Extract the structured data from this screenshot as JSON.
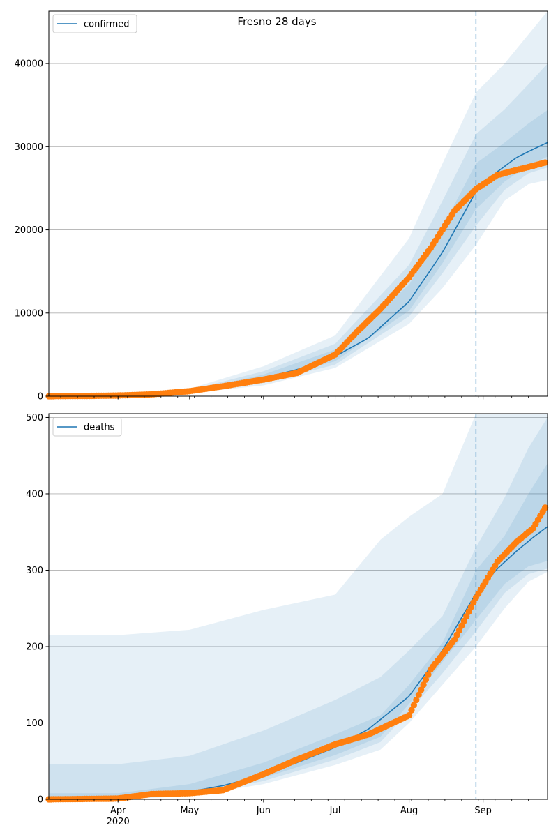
{
  "chart_data": [
    {
      "type": "line",
      "title": "Fresno 28 days",
      "xlabel": "",
      "ylabel": "",
      "x_ticks": [
        "Apr\n2020",
        "May",
        "Jun",
        "Jul",
        "Aug",
        "Sep"
      ],
      "ylim": [
        0,
        46300
      ],
      "yticks": [
        0,
        10000,
        20000,
        30000,
        40000
      ],
      "grid": "horizontal",
      "legend_placement": "top-left",
      "x_range": [
        "2020-03-03",
        "2020-09-28"
      ],
      "cutoff_date": "2020-08-29",
      "series": [
        {
          "name": "confirmed",
          "color": "#1f77b4",
          "kind": "line",
          "x": [
            "2020-03-03",
            "2020-03-15",
            "2020-04-01",
            "2020-04-15",
            "2020-05-01",
            "2020-05-15",
            "2020-06-01",
            "2020-06-15",
            "2020-07-01",
            "2020-07-15",
            "2020-08-01",
            "2020-08-15",
            "2020-08-29",
            "2020-09-07",
            "2020-09-15",
            "2020-09-22",
            "2020-09-28"
          ],
          "y": [
            0,
            20,
            60,
            150,
            500,
            1100,
            2200,
            3200,
            4800,
            7000,
            11400,
            17300,
            24600,
            27000,
            28700,
            29700,
            30500
          ]
        },
        {
          "kind": "points",
          "color": "#ff7f0e",
          "x": [
            "2020-03-03",
            "2020-03-15",
            "2020-04-01",
            "2020-04-15",
            "2020-05-01",
            "2020-05-15",
            "2020-06-01",
            "2020-06-15",
            "2020-07-01",
            "2020-07-10",
            "2020-07-20",
            "2020-08-01",
            "2020-08-10",
            "2020-08-20",
            "2020-08-29",
            "2020-09-07",
            "2020-09-15",
            "2020-09-22",
            "2020-09-27"
          ],
          "y": [
            0,
            20,
            80,
            220,
            600,
            1200,
            2000,
            2800,
            5000,
            7700,
            10500,
            14300,
            17800,
            22300,
            24900,
            26600,
            27200,
            27700,
            28100
          ]
        }
      ],
      "bands": {
        "color": "#1f77b4",
        "x": [
          "2020-03-03",
          "2020-04-01",
          "2020-05-01",
          "2020-06-01",
          "2020-07-01",
          "2020-08-01",
          "2020-08-15",
          "2020-08-29",
          "2020-09-10",
          "2020-09-20",
          "2020-09-28"
        ],
        "outer_lower": [
          0,
          30,
          350,
          1300,
          3400,
          8700,
          13000,
          18200,
          23500,
          25500,
          26000
        ],
        "outer_upper": [
          0,
          150,
          900,
          3600,
          7300,
          19000,
          28000,
          36500,
          40000,
          43500,
          46300
        ],
        "mid_lower": [
          0,
          40,
          400,
          1600,
          3800,
          9600,
          14800,
          20500,
          24800,
          26800,
          27500
        ],
        "mid_upper": [
          0,
          110,
          750,
          3000,
          6300,
          15800,
          23500,
          31500,
          34500,
          37500,
          40000
        ],
        "inner_lower": [
          0,
          50,
          450,
          1800,
          4200,
          10300,
          16000,
          22500,
          25800,
          27800,
          28800
        ],
        "inner_upper": [
          0,
          80,
          620,
          2600,
          5600,
          13400,
          20300,
          28000,
          30500,
          32800,
          34400
        ]
      }
    },
    {
      "type": "line",
      "title": "",
      "xlabel": "",
      "ylabel": "",
      "x_ticks": [
        "Apr\n2020",
        "May",
        "Jun",
        "Jul",
        "Aug",
        "Sep"
      ],
      "ylim": [
        0,
        505
      ],
      "yticks": [
        0,
        100,
        200,
        300,
        400,
        500
      ],
      "grid": "horizontal",
      "legend_placement": "top-left",
      "x_range": [
        "2020-03-03",
        "2020-09-28"
      ],
      "cutoff_date": "2020-08-29",
      "series": [
        {
          "name": "deaths",
          "color": "#1f77b4",
          "kind": "line",
          "x": [
            "2020-03-03",
            "2020-04-01",
            "2020-04-15",
            "2020-05-01",
            "2020-05-15",
            "2020-06-01",
            "2020-06-15",
            "2020-07-01",
            "2020-07-15",
            "2020-08-01",
            "2020-08-15",
            "2020-08-29",
            "2020-09-07",
            "2020-09-15",
            "2020-09-22",
            "2020-09-28"
          ],
          "y": [
            0,
            1,
            5,
            10,
            18,
            32,
            48,
            68,
            92,
            135,
            195,
            270,
            302,
            325,
            343,
            357
          ]
        },
        {
          "kind": "points",
          "color": "#ff7f0e",
          "x": [
            "2020-03-03",
            "2020-04-01",
            "2020-04-15",
            "2020-05-01",
            "2020-05-15",
            "2020-06-01",
            "2020-06-15",
            "2020-07-01",
            "2020-07-15",
            "2020-08-01",
            "2020-08-10",
            "2020-08-20",
            "2020-08-29",
            "2020-09-07",
            "2020-09-15",
            "2020-09-22",
            "2020-09-27"
          ],
          "y": [
            0,
            1,
            7,
            8,
            12,
            33,
            52,
            72,
            85,
            110,
            170,
            209,
            264,
            311,
            337,
            355,
            382
          ]
        }
      ],
      "bands": {
        "color": "#1f77b4",
        "x": [
          "2020-03-03",
          "2020-04-01",
          "2020-05-01",
          "2020-06-01",
          "2020-07-01",
          "2020-07-20",
          "2020-08-01",
          "2020-08-15",
          "2020-08-29",
          "2020-09-10",
          "2020-09-20",
          "2020-09-28"
        ],
        "outer_lower": [
          0,
          0,
          4,
          20,
          45,
          65,
          100,
          150,
          200,
          250,
          285,
          298
        ],
        "outer_upper": [
          215,
          215,
          222,
          248,
          268,
          340,
          370,
          400,
          505,
          505,
          505,
          505
        ],
        "mid_lower": [
          0,
          0,
          6,
          24,
          52,
          75,
          115,
          165,
          220,
          270,
          295,
          302
        ],
        "mid_upper": [
          46,
          46,
          57,
          90,
          130,
          160,
          195,
          240,
          330,
          395,
          460,
          500
        ],
        "inner_lower": [
          0,
          1,
          8,
          28,
          58,
          82,
          125,
          180,
          235,
          282,
          305,
          312
        ],
        "inner_upper": [
          8,
          8,
          20,
          48,
          85,
          110,
          150,
          205,
          300,
          345,
          400,
          440
        ]
      }
    }
  ]
}
